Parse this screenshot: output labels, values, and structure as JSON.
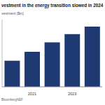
{
  "chart_data": {
    "type": "bar",
    "title": "vestment in the energy transition slowed in 2024",
    "subtitle": "vestment ($tn)",
    "annotations": [
      "BloombergNEF"
    ],
    "categories": [
      null,
      "2021",
      null,
      "2023",
      null
    ],
    "values": [
      0.93,
      1.25,
      1.59,
      1.88,
      2.15
    ],
    "color": "#1f3a73",
    "ylim": [
      0,
      2.4
    ],
    "grid": false,
    "tick_labels": "x"
  }
}
